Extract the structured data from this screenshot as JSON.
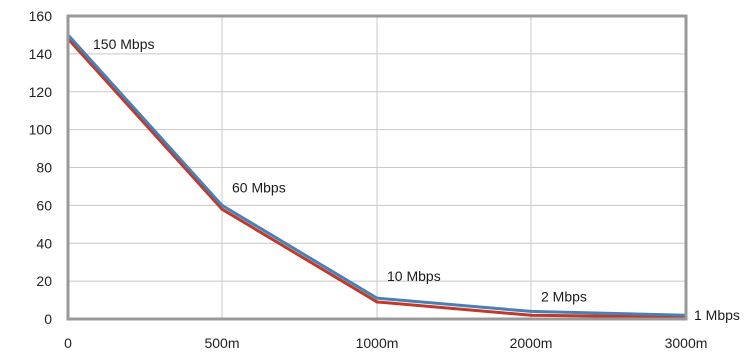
{
  "chart_data": {
    "type": "line",
    "title": "",
    "xlabel": "",
    "ylabel": "",
    "categories": [
      "0",
      "500m",
      "1000m",
      "2000m",
      "3000m"
    ],
    "x_tick_labels": [
      "0",
      "500m",
      "1000m",
      "2000m",
      "3000m"
    ],
    "y_ticks": [
      0,
      20,
      40,
      60,
      80,
      100,
      120,
      140,
      160
    ],
    "ylim": [
      0,
      160
    ],
    "grid": true,
    "series": [
      {
        "values": [
          150,
          60,
          11,
          4,
          2
        ],
        "color": "#4a7fb5"
      },
      {
        "values": [
          148,
          58,
          9,
          2,
          1
        ],
        "color": "#c0392b"
      }
    ],
    "data_labels": [
      "150 Mbps",
      "60 Mbps",
      "10 Mbps",
      "2 Mbps",
      "1 Mbps"
    ],
    "colors": {
      "frame": "#999999",
      "grid": "#c8c8c8",
      "blue_line": "#4a7fb5",
      "red_line": "#c0392b"
    }
  }
}
